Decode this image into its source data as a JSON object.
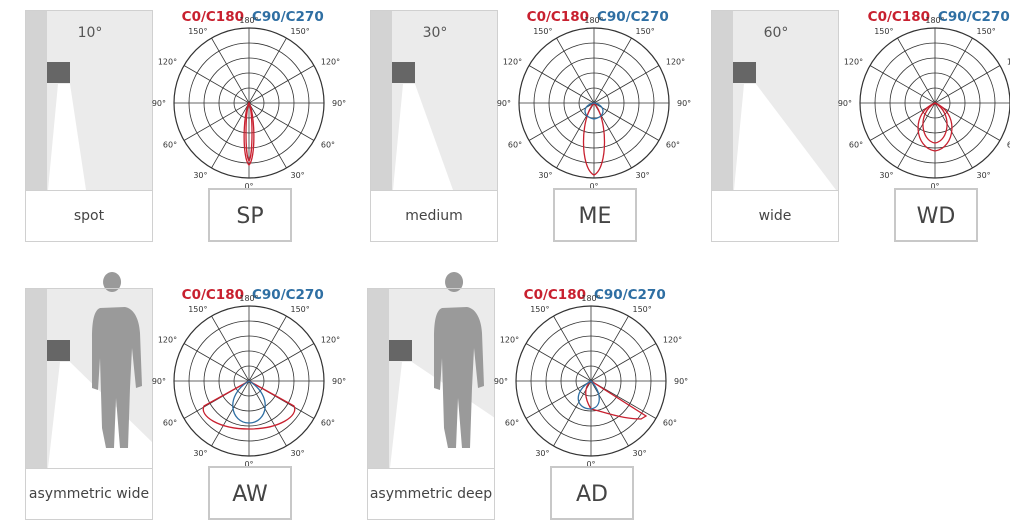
{
  "legend": [
    "C0/C180",
    "C90/C270"
  ],
  "polar_angle_labels": [
    "180°",
    "150°",
    "120°",
    "90°",
    "60°",
    "30°",
    "0°"
  ],
  "items": [
    {
      "angle": "10°",
      "name": "spot",
      "code": "SP"
    },
    {
      "angle": "30°",
      "name": "medium",
      "code": "ME"
    },
    {
      "angle": "60°",
      "name": "wide",
      "code": "WD"
    },
    {
      "name": "asymmetric wide",
      "code": "AW"
    },
    {
      "name": "asymmetric deep",
      "code": "AD"
    }
  ]
}
